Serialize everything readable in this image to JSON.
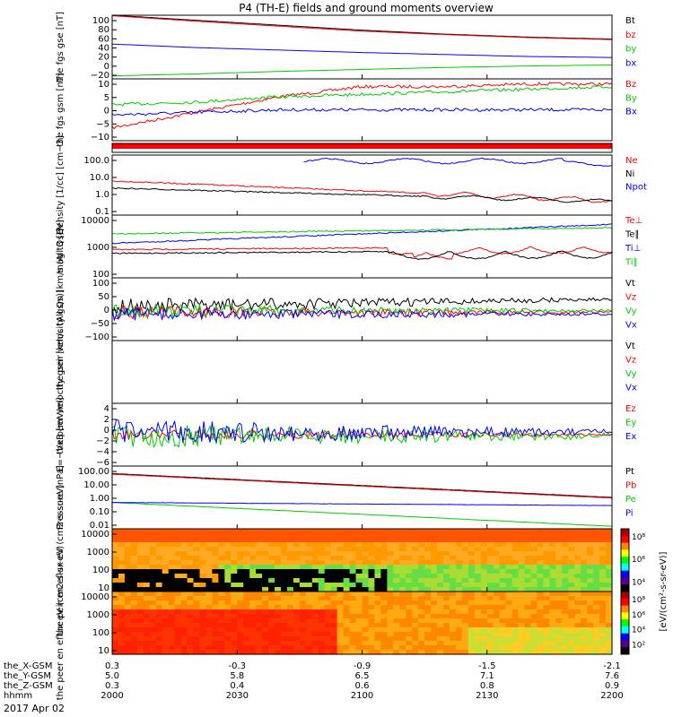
{
  "title": "P4 (TH-E) fields and ground moments overview",
  "date_label": "2017 Apr 02",
  "colors": {
    "black": "#000000",
    "red": "#ff0000",
    "green": "#00cc00",
    "blue": "#0000ff"
  },
  "ephemeris": {
    "labels": [
      "the_X-GSM",
      "the_Y-GSM",
      "the_Z-GSM",
      "hhmm"
    ],
    "rows": [
      [
        "0.3",
        "-0.3",
        "-0.9",
        "-1.5",
        "-2.1"
      ],
      [
        "5.0",
        "5.8",
        "6.5",
        "7.1",
        "7.6"
      ],
      [
        "0.3",
        "0.4",
        "0.6",
        "0.8",
        "0.9"
      ],
      [
        "2000",
        "2030",
        "2100",
        "2130",
        "2200"
      ]
    ]
  },
  "chart_data": [
    {
      "id": "fgs_gse",
      "type": "line",
      "ylabel": "the fgs gse [nT]",
      "yticks": [
        "100",
        "80",
        "60",
        "40",
        "20",
        "0",
        "−20"
      ],
      "ylim": [
        -28,
        100
      ],
      "series": [
        {
          "name": "Bt",
          "color": "#000000",
          "values": [
            100,
            90,
            80,
            70,
            62,
            56,
            52
          ]
        },
        {
          "name": "bz",
          "color": "#ff0000",
          "values": [
            99,
            88,
            78,
            68,
            61,
            55,
            51
          ]
        },
        {
          "name": "by",
          "color": "#00cc00",
          "values": [
            -22,
            -18,
            -13,
            -9,
            -5,
            -2,
            0
          ]
        },
        {
          "name": "bx",
          "color": "#0000ff",
          "values": [
            42,
            35,
            30,
            25,
            21,
            17,
            15
          ]
        }
      ]
    },
    {
      "id": "fgs_gsm",
      "type": "line",
      "ylabel": "the fgs gsm [nT]",
      "yticks": [
        "10",
        "5",
        "0",
        "−5",
        "−10"
      ],
      "ylim": [
        -14,
        10
      ],
      "series": [
        {
          "name": "Bz",
          "color": "#ff0000",
          "values": [
            -9,
            -3,
            3,
            7,
            7,
            8,
            8
          ]
        },
        {
          "name": "By",
          "color": "#00cc00",
          "values": [
            0,
            1,
            3,
            4,
            5,
            6,
            7
          ]
        },
        {
          "name": "Bx",
          "color": "#0000ff",
          "values": [
            -4,
            -3,
            -2,
            -2,
            -2,
            -2,
            -2
          ]
        }
      ]
    },
    {
      "id": "density",
      "type": "line",
      "ylabel": "Density [1/cc] [cm−3]",
      "yticks": [
        "100.0",
        "10.0",
        "1.0",
        "0.1"
      ],
      "series": [
        {
          "name": "Ne",
          "color": "#ff0000"
        },
        {
          "name": "Ni",
          "color": "#000000"
        },
        {
          "name": "Npot",
          "color": "#0000ff"
        }
      ]
    },
    {
      "id": "temperature",
      "type": "line",
      "ylabel": "mag t3 [eV]",
      "yticks": [
        "10000",
        "1000",
        "100"
      ],
      "series": [
        {
          "name": "Te⊥",
          "color": "#ff0000"
        },
        {
          "name": "Te∥",
          "color": "#000000"
        },
        {
          "name": "Ti⊥",
          "color": "#0000ff"
        },
        {
          "name": "Ti∥",
          "color": "#00cc00"
        }
      ]
    },
    {
      "id": "peir_velocity",
      "type": "line",
      "ylabel": "the peir velocity gsm [km/s (All Qs)]",
      "yticks": [
        "100",
        "50",
        "0",
        "−50",
        "−100"
      ],
      "series": [
        {
          "name": "Vt",
          "color": "#000000"
        },
        {
          "name": "Vz",
          "color": "#ff0000"
        },
        {
          "name": "Vy",
          "color": "#00cc00"
        },
        {
          "name": "Vx",
          "color": "#0000ff"
        }
      ]
    },
    {
      "id": "peer_velocity",
      "type": "line",
      "ylabel": "the peer velocity gsm [km/s (All Qs)]",
      "yticks": [],
      "series": [
        {
          "name": "Vt",
          "color": "#000000"
        },
        {
          "name": "Vz",
          "color": "#ff0000"
        },
        {
          "name": "Vy",
          "color": "#00cc00"
        },
        {
          "name": "Vx",
          "color": "#0000ff"
        }
      ]
    },
    {
      "id": "efield",
      "type": "line",
      "ylabel": "E=−VxB [mV/m]",
      "yticks": [
        "4",
        "2",
        "0",
        "−2",
        "−4",
        "−6"
      ],
      "series": [
        {
          "name": "Ez",
          "color": "#ff0000"
        },
        {
          "name": "Ey",
          "color": "#00cc00"
        },
        {
          "name": "Ex",
          "color": "#0000ff"
        }
      ]
    },
    {
      "id": "pressure",
      "type": "line",
      "ylabel": "Pressure [nPa]",
      "yticks": [
        "100.00",
        "10.00",
        "1.00",
        "0.10",
        "0.01"
      ],
      "series": [
        {
          "name": "Pt",
          "color": "#000000"
        },
        {
          "name": "Pb",
          "color": "#ff0000"
        },
        {
          "name": "Pe",
          "color": "#00cc00"
        },
        {
          "name": "Pi",
          "color": "#0000ff"
        }
      ]
    },
    {
      "id": "peir_spec",
      "type": "heatmap",
      "ylabel": "the peir en eflux eV (cm2-s-sr-eV)",
      "yticks": [
        "10000",
        "1000",
        "100",
        "10"
      ],
      "colorbar_ticks": [
        "10⁸",
        "10⁶",
        "10⁴"
      ]
    },
    {
      "id": "peer_spec",
      "type": "heatmap",
      "ylabel": "the peer en eflux eV (cm2-s-sr-eV)",
      "yticks": [
        "10000",
        "1000",
        "100",
        "10"
      ],
      "colorbar_ticks": [
        "10⁸",
        "10⁶",
        "10⁴",
        "10²"
      ]
    }
  ],
  "colorbar_label": "[eV/(cm²-s-sr-eV)]"
}
